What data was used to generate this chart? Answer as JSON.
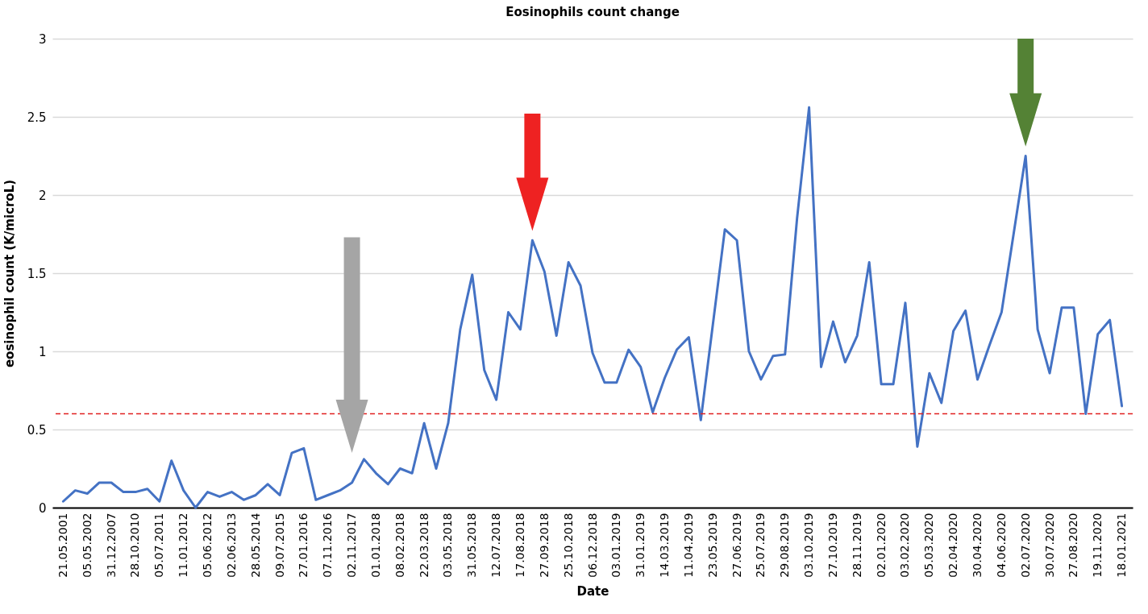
{
  "chart_data": {
    "type": "line",
    "title": "Eosinophils count change",
    "xlabel": "Date",
    "ylabel": "eosinophil count (K/microL)",
    "categories": [
      "21.05.2001",
      null,
      "05.05.2002",
      null,
      "31.12.2007",
      null,
      "28.10.2010",
      null,
      "05.07.2011",
      null,
      "11.01.2012",
      null,
      "05.06.2012",
      null,
      "02.06.2013",
      null,
      "28.05.2014",
      null,
      "09.07.2015",
      null,
      "27.01.2016",
      null,
      "07.11.2016",
      null,
      "02.11.2017",
      null,
      "01.01.2018",
      null,
      "08.02.2018",
      null,
      "22.03.2018",
      null,
      "03.05.2018",
      null,
      "31.05.2018",
      null,
      "12.07.2018",
      null,
      "17.08.2018",
      null,
      "27.09.2018",
      null,
      "25.10.2018",
      null,
      "06.12.2018",
      null,
      "03.01.2019",
      null,
      "31.01.2019",
      null,
      "14.03.2019",
      null,
      "11.04.2019",
      null,
      "23.05.2019",
      null,
      "27.06.2019",
      null,
      "25.07.2019",
      null,
      "29.08.2019",
      null,
      "03.10.2019",
      null,
      "27.10.2019",
      null,
      "28.11.2019",
      null,
      "02.01.2020",
      null,
      "03.02.2020",
      null,
      "05.03.2020",
      null,
      "02.04.2020",
      null,
      "30.04.2020",
      null,
      "04.06.2020",
      null,
      "02.07.2020",
      null,
      "30.07.2020",
      null,
      "27.08.2020",
      null,
      "19.11.2020",
      null,
      "18.01.2021"
    ],
    "series": [
      {
        "color": "#4472c4",
        "values": [
          0.04,
          0.11,
          0.09,
          0.16,
          0.16,
          0.1,
          0.1,
          0.12,
          0.04,
          0.3,
          0.11,
          0.0,
          0.1,
          0.07,
          0.1,
          0.05,
          0.08,
          0.15,
          0.08,
          0.35,
          0.38,
          0.05,
          0.08,
          0.11,
          0.16,
          0.31,
          0.22,
          0.15,
          0.25,
          0.22,
          0.54,
          0.25,
          0.54,
          1.14,
          1.49,
          0.88,
          0.69,
          1.25,
          1.14,
          1.71,
          1.51,
          1.1,
          1.57,
          1.42,
          0.99,
          0.8,
          0.8,
          1.01,
          0.9,
          0.61,
          0.83,
          1.01,
          1.09,
          0.56,
          1.17,
          1.78,
          1.71,
          1.0,
          0.82,
          0.97,
          0.98,
          1.85,
          2.56,
          0.9,
          1.19,
          0.93,
          1.1,
          1.57,
          0.79,
          0.79,
          1.31,
          0.39,
          0.86,
          0.67,
          1.13,
          1.26,
          0.82,
          1.04,
          1.25,
          1.75,
          2.25,
          1.14,
          0.86,
          1.28,
          1.28,
          0.6,
          1.11,
          1.2,
          0.65
        ]
      }
    ],
    "ylim": [
      0,
      3
    ],
    "yticks": [
      0,
      0.5,
      1,
      1.5,
      2,
      2.5,
      3
    ],
    "grid": "y",
    "ref_lines": [
      {
        "axis": "y",
        "value": 0.6,
        "color": "#e02020",
        "line_style": "dashed"
      }
    ]
  }
}
